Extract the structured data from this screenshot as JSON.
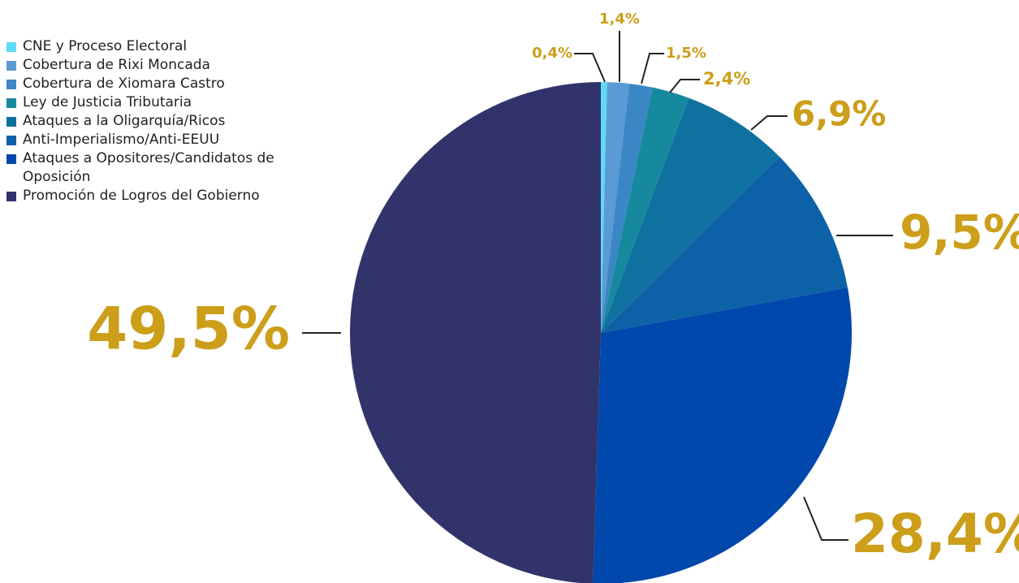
{
  "chart_data": {
    "type": "pie",
    "categories": [
      "CNE y Proceso Electoral",
      "Cobertura de Rixi Moncada",
      "Cobertura de Xiomara Castro",
      "Ley de Justicia Tributaria",
      "Ataques a la Oligarquía/Ricos",
      "Anti-Imperialismo/Anti-EEUU",
      "Ataques a Opositores/Candidatos de Oposición",
      "Promoción de Logros del Gobierno"
    ],
    "values": [
      0.4,
      1.4,
      1.5,
      2.4,
      6.9,
      9.5,
      28.4,
      49.5
    ],
    "value_labels": [
      "0,4%",
      "1,4%",
      "1,5%",
      "2,4%",
      "6,9%",
      "9,5%",
      "28,4%",
      "49,5%"
    ],
    "colors": [
      "#5fd9f6",
      "#5b9bd5",
      "#3b87c6",
      "#17899f",
      "#0f719f",
      "#0d61a7",
      "#0048ab",
      "#31346b"
    ],
    "legend": "top-left"
  }
}
